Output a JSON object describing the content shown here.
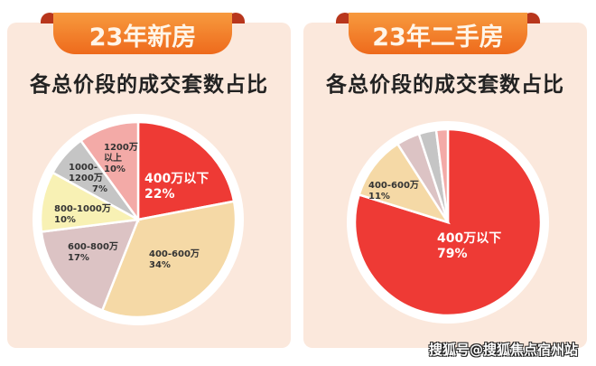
{
  "chart_data": [
    {
      "type": "pie",
      "banner": "23年新房",
      "title": "各总价段的成交套数占比",
      "slices": [
        {
          "label": "400万以下",
          "value": 22,
          "color": "#ee3a35"
        },
        {
          "label": "400-600万",
          "value": 34,
          "color": "#f5d9a6"
        },
        {
          "label": "600-800万",
          "value": 17,
          "color": "#dcc3c4"
        },
        {
          "label": "800-1000万",
          "value": 10,
          "color": "#f8f1b4"
        },
        {
          "label": "1000-1200万",
          "value": 7,
          "color": "#c5c5c5"
        },
        {
          "label": "1200万以上",
          "value": 10,
          "color": "#f3aaa7"
        }
      ]
    },
    {
      "type": "pie",
      "banner": "23年二手房",
      "title": "各总价段的成交套数占比",
      "slices": [
        {
          "label": "400万以下",
          "value": 79,
          "color": "#ee3a35"
        },
        {
          "label": "400-600万",
          "value": 11,
          "color": "#f5d9a6"
        },
        {
          "label": "",
          "value": 4,
          "color": "#dcc3c4"
        },
        {
          "label": "",
          "value": 3,
          "color": "#c5c5c5"
        },
        {
          "label": "",
          "value": 2,
          "color": "#f3aaa7"
        }
      ]
    }
  ],
  "labels": {
    "l0": [
      "400万以下",
      "22%"
    ],
    "l1": [
      "400-600万",
      "34%"
    ],
    "l2": [
      "600-800万",
      "17%"
    ],
    "l3": [
      "800-1000万",
      "10%"
    ],
    "l4": [
      "1000-",
      "1200万",
      "7%"
    ],
    "l5": [
      "1200万",
      "以上",
      "10%"
    ],
    "r0": [
      "400万以下",
      "79%"
    ],
    "r1": [
      "400-600万",
      "11%"
    ]
  },
  "watermark": "搜狐号@搜狐焦点宿州站"
}
